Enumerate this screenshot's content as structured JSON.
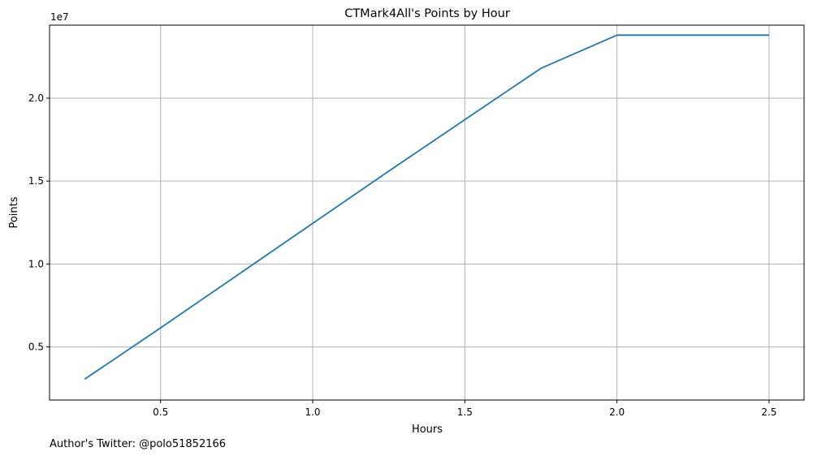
{
  "chart_data": {
    "type": "line",
    "title": "CTMark4All's Points by Hour",
    "xlabel": "Hours",
    "ylabel": "Points",
    "y_offset_label": "1e7",
    "y_scale": 10000000,
    "xlim": [
      0.135,
      2.615
    ],
    "ylim": [
      1800000,
      24400000
    ],
    "xticks": [
      0.5,
      1.0,
      1.5,
      2.0,
      2.5
    ],
    "xtick_labels": [
      "0.5",
      "1.0",
      "1.5",
      "2.0",
      "2.5"
    ],
    "yticks": [
      5000000,
      10000000,
      15000000,
      20000000
    ],
    "ytick_labels": [
      "0.5",
      "1.0",
      "1.5",
      "2.0"
    ],
    "grid": true,
    "series": [
      {
        "name": "Points",
        "color": "#1f77b4",
        "x": [
          0.25,
          0.5,
          0.75,
          1.0,
          1.25,
          1.5,
          1.75,
          2.0,
          2.25,
          2.5
        ],
        "y": [
          3050000,
          6150000,
          9300000,
          12450000,
          15600000,
          18700000,
          21800000,
          23800000,
          23800000,
          23800000
        ]
      }
    ]
  },
  "footer": {
    "author_note": "Author's Twitter: @polo51852166"
  }
}
